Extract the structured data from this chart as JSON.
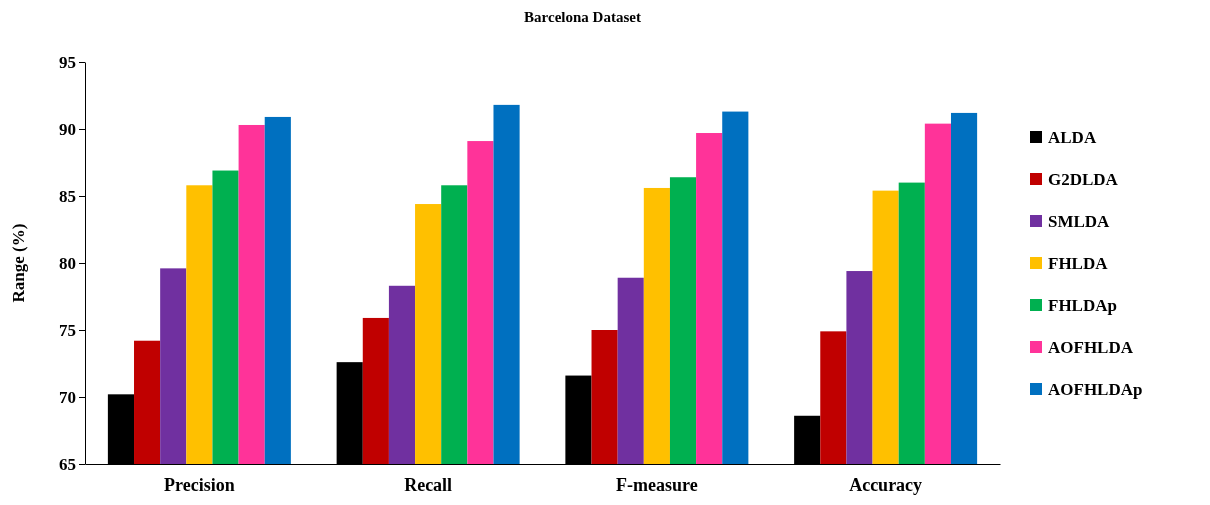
{
  "chart_data": {
    "type": "bar",
    "title": "Barcelona Dataset",
    "ylabel": "Range (%)",
    "categories": [
      "Precision",
      "Recall",
      "F-measure",
      "Accuracy"
    ],
    "series": [
      {
        "name": "ALDA",
        "color": "#000000",
        "values": [
          70.2,
          72.6,
          71.6,
          68.6
        ]
      },
      {
        "name": "G2DLDA",
        "color": "#c00000",
        "values": [
          74.2,
          75.9,
          75.0,
          74.9
        ]
      },
      {
        "name": "SMLDA",
        "color": "#7030a0",
        "values": [
          79.6,
          78.3,
          78.9,
          79.4
        ]
      },
      {
        "name": "FHLDA",
        "color": "#ffc000",
        "values": [
          85.8,
          84.4,
          85.6,
          85.4
        ]
      },
      {
        "name": "FHLDAp",
        "color": "#00b050",
        "values": [
          86.9,
          85.8,
          86.4,
          86.0
        ]
      },
      {
        "name": "AOFHLDA",
        "color": "#ff3399",
        "values": [
          90.3,
          89.1,
          89.7,
          90.4
        ]
      },
      {
        "name": "AOFHLDAp",
        "color": "#0070c0",
        "values": [
          90.9,
          91.8,
          91.3,
          91.2
        ]
      }
    ],
    "ylim": [
      65,
      95
    ],
    "yticks": [
      65,
      70,
      75,
      80,
      85,
      90,
      95
    ],
    "grid": false,
    "legend": "right"
  }
}
